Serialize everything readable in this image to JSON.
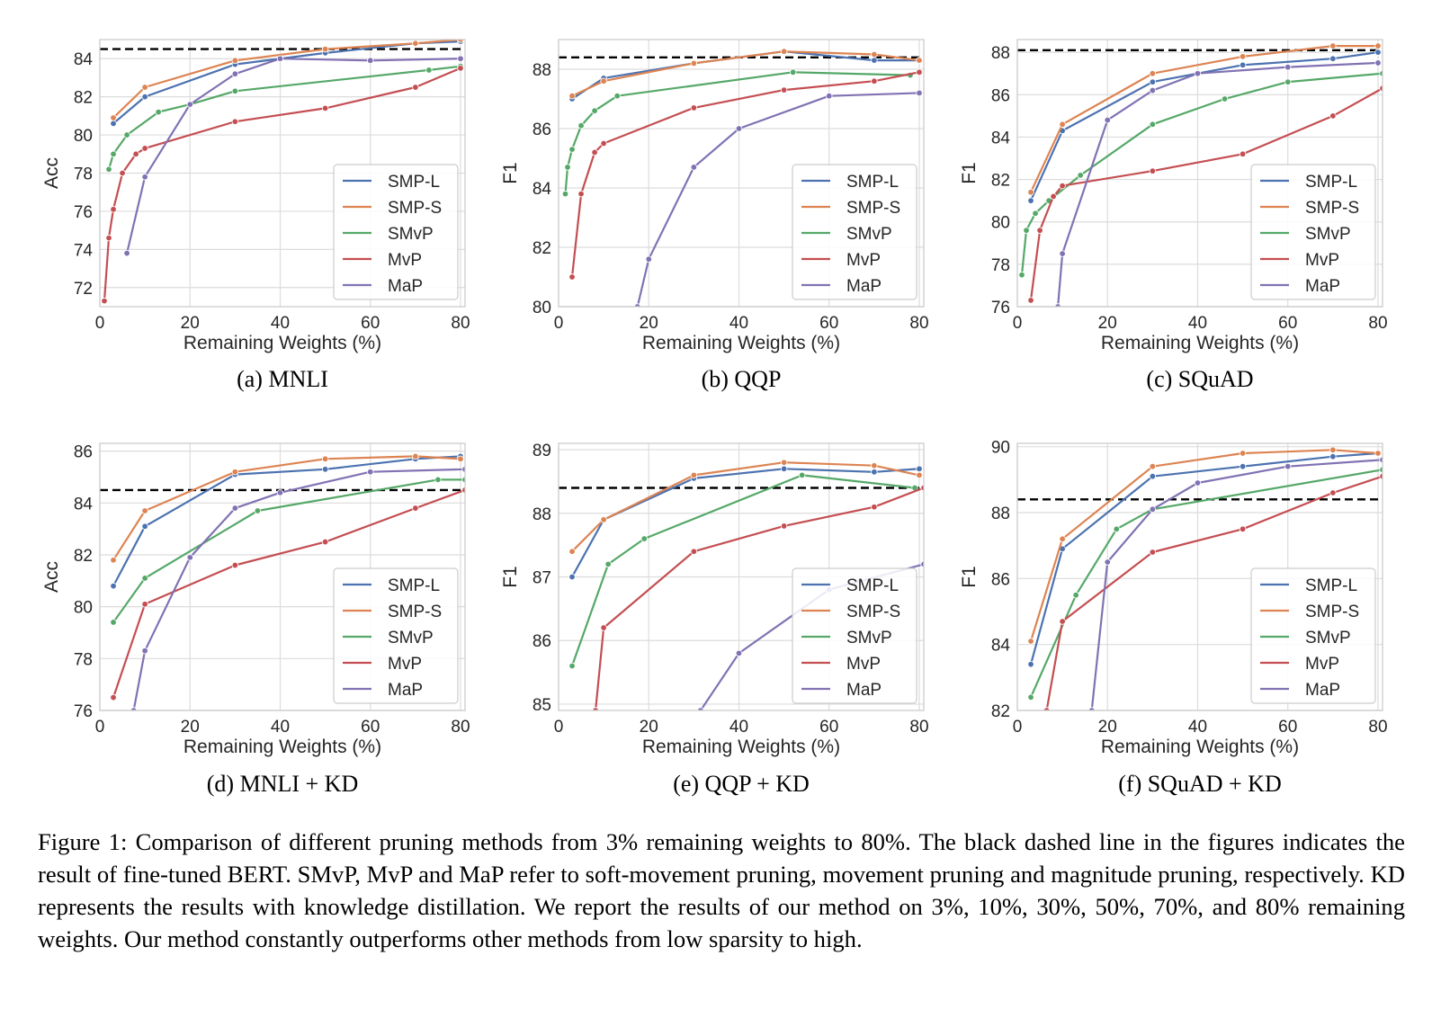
{
  "caption": "Figure 1: Comparison of different pruning methods from 3% remaining weights to 80%. The black dashed line in the figures indicates the result of fine-tuned BERT. SMvP, MvP and MaP refer to soft-movement pruning, movement pruning and magnitude pruning, respectively. KD represents the results with knowledge distillation. We report the results of our method on 3%, 10%, 30%, 50%, 70%, and 80% remaining weights. Our method constantly outperforms other methods from low sparsity to high.",
  "colors": {
    "SMP-L": "#4c72b0",
    "SMP-S": "#dd8452",
    "SMvP": "#55a868",
    "MvP": "#c44e52",
    "MaP": "#8172b3",
    "baseline": "#000000",
    "grid": "#dcdcdc"
  },
  "chart_data": [
    {
      "type": "line",
      "caption": "(a)  MNLI",
      "xlabel": "Remaining Weights (%)",
      "ylabel": "Acc",
      "xlim": [
        0,
        81
      ],
      "ylim": [
        71,
        85
      ],
      "xticks": [
        0,
        20,
        40,
        60,
        80
      ],
      "yticks": [
        72,
        74,
        76,
        78,
        80,
        82,
        84
      ],
      "baseline": 84.5,
      "grid": true,
      "legend": "lower-right",
      "series": [
        {
          "name": "SMP-L",
          "x": [
            3,
            10,
            30,
            50,
            70,
            80
          ],
          "y": [
            80.6,
            82.0,
            83.7,
            84.3,
            84.8,
            84.9
          ]
        },
        {
          "name": "SMP-S",
          "x": [
            3,
            10,
            30,
            50,
            70,
            80
          ],
          "y": [
            80.9,
            82.5,
            83.9,
            84.5,
            84.8,
            85.0
          ]
        },
        {
          "name": "SMvP",
          "x": [
            2,
            3,
            6,
            13,
            20,
            30,
            73,
            80
          ],
          "y": [
            78.2,
            79.0,
            80.0,
            81.2,
            81.6,
            82.3,
            83.4,
            83.6
          ]
        },
        {
          "name": "MvP",
          "x": [
            1,
            2,
            3,
            5,
            8,
            10,
            30,
            50,
            70,
            80
          ],
          "y": [
            71.3,
            74.6,
            76.1,
            78.0,
            79.0,
            79.3,
            80.7,
            81.4,
            82.5,
            83.5
          ]
        },
        {
          "name": "MaP",
          "x": [
            6,
            10,
            20,
            30,
            40,
            60,
            80
          ],
          "y": [
            73.8,
            77.8,
            81.6,
            83.2,
            84.0,
            83.9,
            84.0
          ]
        }
      ]
    },
    {
      "type": "line",
      "caption": "(b)  QQP",
      "xlabel": "Remaining Weights (%)",
      "ylabel": "F1",
      "xlim": [
        0,
        81
      ],
      "ylim": [
        80,
        89
      ],
      "xticks": [
        0,
        20,
        40,
        60,
        80
      ],
      "yticks": [
        80,
        82,
        84,
        86,
        88
      ],
      "baseline": 88.4,
      "grid": true,
      "legend": "lower-right",
      "series": [
        {
          "name": "SMP-L",
          "x": [
            3,
            10,
            30,
            50,
            70,
            80
          ],
          "y": [
            87.0,
            87.7,
            88.2,
            88.6,
            88.3,
            88.3
          ]
        },
        {
          "name": "SMP-S",
          "x": [
            3,
            10,
            30,
            50,
            70,
            80
          ],
          "y": [
            87.1,
            87.6,
            88.2,
            88.6,
            88.5,
            88.3
          ]
        },
        {
          "name": "SMvP",
          "x": [
            1.5,
            2,
            3,
            5,
            8,
            13,
            52,
            78
          ],
          "y": [
            83.8,
            84.7,
            85.3,
            86.1,
            86.6,
            87.1,
            87.9,
            87.8
          ]
        },
        {
          "name": "MvP",
          "x": [
            3,
            5,
            8,
            10,
            30,
            50,
            70,
            80
          ],
          "y": [
            81.0,
            83.8,
            85.2,
            85.5,
            86.7,
            87.3,
            87.6,
            87.9
          ]
        },
        {
          "name": "MaP",
          "x": [
            17.5,
            20,
            30,
            40,
            60,
            80
          ],
          "y": [
            80.0,
            81.6,
            84.7,
            86.0,
            87.1,
            87.2
          ]
        }
      ]
    },
    {
      "type": "line",
      "caption": "(c)  SQuAD",
      "xlabel": "Remaining Weights (%)",
      "ylabel": "F1",
      "xlim": [
        0,
        81
      ],
      "ylim": [
        76,
        88.6
      ],
      "xticks": [
        0,
        20,
        40,
        60,
        80
      ],
      "yticks": [
        76,
        78,
        80,
        82,
        84,
        86,
        88
      ],
      "baseline": 88.1,
      "grid": true,
      "legend": "lower-right",
      "series": [
        {
          "name": "SMP-L",
          "x": [
            3,
            10,
            30,
            50,
            70,
            80
          ],
          "y": [
            81.0,
            84.3,
            86.6,
            87.4,
            87.7,
            88.0
          ]
        },
        {
          "name": "SMP-S",
          "x": [
            3,
            10,
            30,
            50,
            70,
            80
          ],
          "y": [
            81.4,
            84.6,
            87.0,
            87.8,
            88.3,
            88.3
          ]
        },
        {
          "name": "SMvP",
          "x": [
            1,
            2,
            4,
            7,
            14,
            30,
            46,
            60,
            81
          ],
          "y": [
            77.5,
            79.6,
            80.4,
            81.0,
            82.2,
            84.6,
            85.8,
            86.6,
            87.0
          ]
        },
        {
          "name": "MvP",
          "x": [
            3,
            5,
            8,
            10,
            30,
            50,
            70,
            81
          ],
          "y": [
            76.3,
            79.6,
            81.2,
            81.7,
            82.4,
            83.2,
            85.0,
            86.3
          ]
        },
        {
          "name": "MaP",
          "x": [
            9,
            10,
            20,
            30,
            40,
            60,
            80
          ],
          "y": [
            76.0,
            78.5,
            84.8,
            86.2,
            87.0,
            87.3,
            87.5
          ]
        }
      ]
    },
    {
      "type": "line",
      "caption": "(d)  MNLI + KD",
      "xlabel": "Remaining Weights (%)",
      "ylabel": "Acc",
      "xlim": [
        0,
        81
      ],
      "ylim": [
        76,
        86.3
      ],
      "xticks": [
        0,
        20,
        40,
        60,
        80
      ],
      "yticks": [
        76,
        78,
        80,
        82,
        84,
        86
      ],
      "baseline": 84.5,
      "grid": true,
      "legend": "lower-right",
      "series": [
        {
          "name": "SMP-L",
          "x": [
            3,
            10,
            30,
            50,
            70,
            80
          ],
          "y": [
            80.8,
            83.1,
            85.1,
            85.3,
            85.7,
            85.8
          ]
        },
        {
          "name": "SMP-S",
          "x": [
            3,
            10,
            30,
            50,
            70,
            80
          ],
          "y": [
            81.8,
            83.7,
            85.2,
            85.7,
            85.8,
            85.7
          ]
        },
        {
          "name": "SMvP",
          "x": [
            3,
            10,
            35,
            75,
            81
          ],
          "y": [
            79.4,
            81.1,
            83.7,
            84.9,
            84.9
          ]
        },
        {
          "name": "MvP",
          "x": [
            3,
            10,
            30,
            50,
            70,
            81
          ],
          "y": [
            76.5,
            80.1,
            81.6,
            82.5,
            83.8,
            84.5
          ]
        },
        {
          "name": "MaP",
          "x": [
            7.5,
            10,
            20,
            30,
            40,
            60,
            81
          ],
          "y": [
            76.0,
            78.3,
            81.9,
            83.8,
            84.4,
            85.2,
            85.3
          ]
        }
      ]
    },
    {
      "type": "line",
      "caption": "(e)  QQP + KD",
      "xlabel": "Remaining Weights (%)",
      "ylabel": "F1",
      "xlim": [
        0,
        81
      ],
      "ylim": [
        84.9,
        89.1
      ],
      "xticks": [
        0,
        20,
        40,
        60,
        80
      ],
      "yticks": [
        85,
        86,
        87,
        88,
        89
      ],
      "baseline": 88.4,
      "grid": true,
      "legend": "lower-right",
      "series": [
        {
          "name": "SMP-L",
          "x": [
            3,
            10,
            30,
            50,
            70,
            80
          ],
          "y": [
            87.0,
            87.9,
            88.55,
            88.7,
            88.65,
            88.7
          ]
        },
        {
          "name": "SMP-S",
          "x": [
            3,
            10,
            30,
            50,
            70,
            80
          ],
          "y": [
            87.4,
            87.9,
            88.6,
            88.8,
            88.75,
            88.6
          ]
        },
        {
          "name": "SMvP",
          "x": [
            3,
            11,
            19,
            54,
            79
          ],
          "y": [
            85.6,
            87.2,
            87.6,
            88.6,
            88.4
          ]
        },
        {
          "name": "MvP",
          "x": [
            8.2,
            10,
            30,
            50,
            70,
            81
          ],
          "y": [
            84.9,
            86.2,
            87.4,
            87.8,
            88.1,
            88.4
          ]
        },
        {
          "name": "MaP",
          "x": [
            31.5,
            40,
            60,
            81
          ],
          "y": [
            84.9,
            85.8,
            86.8,
            87.2
          ]
        }
      ]
    },
    {
      "type": "line",
      "caption": "(f)  SQuAD + KD",
      "xlabel": "Remaining Weights (%)",
      "ylabel": "F1",
      "xlim": [
        0,
        81
      ],
      "ylim": [
        82,
        90.1
      ],
      "xticks": [
        0,
        20,
        40,
        60,
        80
      ],
      "yticks": [
        82,
        84,
        86,
        88,
        90
      ],
      "baseline": 88.4,
      "grid": true,
      "legend": "lower-right",
      "series": [
        {
          "name": "SMP-L",
          "x": [
            3,
            10,
            30,
            50,
            70,
            80
          ],
          "y": [
            83.4,
            86.9,
            89.1,
            89.4,
            89.7,
            89.8
          ]
        },
        {
          "name": "SMP-S",
          "x": [
            3,
            10,
            30,
            50,
            70,
            80
          ],
          "y": [
            84.1,
            87.2,
            89.4,
            89.8,
            89.9,
            89.8
          ]
        },
        {
          "name": "SMvP",
          "x": [
            3,
            13,
            22,
            30,
            81
          ],
          "y": [
            82.4,
            85.5,
            87.5,
            88.1,
            89.3
          ]
        },
        {
          "name": "MvP",
          "x": [
            6.5,
            10,
            30,
            50,
            70,
            81
          ],
          "y": [
            82.0,
            84.7,
            86.8,
            87.5,
            88.6,
            89.1
          ]
        },
        {
          "name": "MaP",
          "x": [
            16.5,
            20,
            30,
            40,
            60,
            81
          ],
          "y": [
            82.0,
            86.5,
            88.1,
            88.9,
            89.4,
            89.6
          ]
        }
      ]
    }
  ]
}
